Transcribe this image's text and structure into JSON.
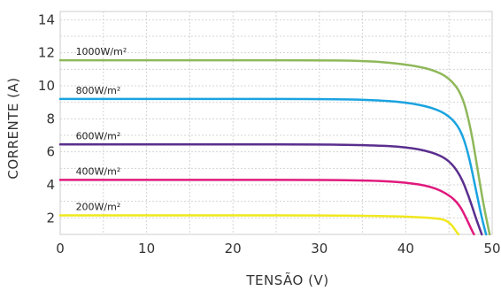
{
  "chart_data": {
    "type": "line",
    "title": "",
    "xlabel": "TENSÃO (V)",
    "ylabel": "CORRENTE (A)",
    "xlim": [
      0,
      50
    ],
    "ylim": [
      1,
      14.5
    ],
    "x_ticks": [
      "0",
      "10",
      "20",
      "30",
      "40",
      "50"
    ],
    "y_ticks": [
      "2",
      "4",
      "6",
      "8",
      "10",
      "12",
      "14"
    ],
    "grid": true,
    "series": [
      {
        "name": "1000W/m²",
        "color": "#8fb85a",
        "points": [
          [
            0,
            11.55
          ],
          [
            10,
            11.55
          ],
          [
            20,
            11.55
          ],
          [
            30,
            11.55
          ],
          [
            36,
            11.5
          ],
          [
            40,
            11.3
          ],
          [
            43,
            11.0
          ],
          [
            45,
            10.5
          ],
          [
            46.5,
            9.5
          ],
          [
            47.5,
            7.5
          ],
          [
            48.3,
            5.0
          ],
          [
            49,
            2.8
          ],
          [
            49.7,
            1.0
          ]
        ]
      },
      {
        "name": "800W/m²",
        "color": "#1aa3e0",
        "points": [
          [
            0,
            9.2
          ],
          [
            10,
            9.2
          ],
          [
            20,
            9.2
          ],
          [
            30,
            9.2
          ],
          [
            36,
            9.15
          ],
          [
            40,
            9.0
          ],
          [
            43,
            8.7
          ],
          [
            45,
            8.2
          ],
          [
            46.3,
            7.4
          ],
          [
            47.2,
            6.0
          ],
          [
            48.0,
            4.0
          ],
          [
            48.8,
            2.0
          ],
          [
            49.3,
            1.0
          ]
        ]
      },
      {
        "name": "600W/m²",
        "color": "#5a2e8e",
        "points": [
          [
            0,
            6.45
          ],
          [
            10,
            6.45
          ],
          [
            20,
            6.45
          ],
          [
            30,
            6.45
          ],
          [
            36,
            6.4
          ],
          [
            40,
            6.3
          ],
          [
            43,
            6.0
          ],
          [
            45,
            5.5
          ],
          [
            46.3,
            4.6
          ],
          [
            47.3,
            3.3
          ],
          [
            48.1,
            2.0
          ],
          [
            48.8,
            1.0
          ]
        ]
      },
      {
        "name": "400W/m²",
        "color": "#e0197d",
        "points": [
          [
            0,
            4.3
          ],
          [
            10,
            4.3
          ],
          [
            20,
            4.3
          ],
          [
            30,
            4.3
          ],
          [
            36,
            4.27
          ],
          [
            40,
            4.15
          ],
          [
            43,
            3.9
          ],
          [
            45,
            3.4
          ],
          [
            46.2,
            2.8
          ],
          [
            47.0,
            2.0
          ],
          [
            47.6,
            1.3
          ],
          [
            47.9,
            1.0
          ]
        ]
      },
      {
        "name": "200W/m²",
        "color": "#f0e81e",
        "points": [
          [
            0,
            2.15
          ],
          [
            10,
            2.15
          ],
          [
            20,
            2.15
          ],
          [
            30,
            2.15
          ],
          [
            36,
            2.12
          ],
          [
            40,
            2.08
          ],
          [
            43,
            2.0
          ],
          [
            44.5,
            1.9
          ],
          [
            45.3,
            1.6
          ],
          [
            45.8,
            1.2
          ],
          [
            46.1,
            1.0
          ]
        ]
      }
    ]
  }
}
